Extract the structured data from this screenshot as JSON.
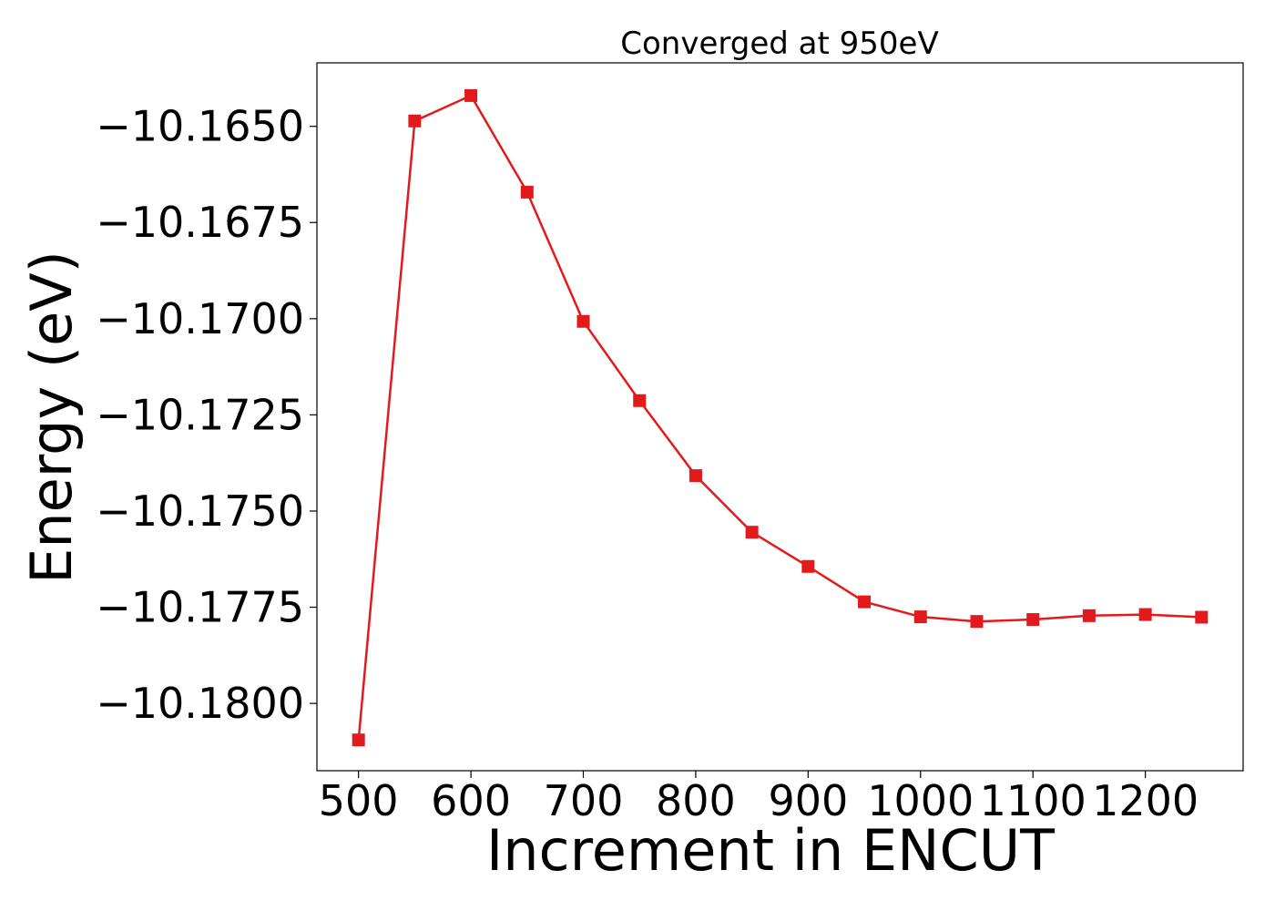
{
  "chart_data": {
    "type": "line",
    "title": "Converged at 950eV",
    "xlabel": "Increment in ENCUT",
    "ylabel": "Energy (eV)",
    "xlim": [
      463,
      1287
    ],
    "ylim": [
      -10.18175,
      -10.16335
    ],
    "x_ticks": [
      500,
      600,
      700,
      800,
      900,
      1000,
      1100,
      1200
    ],
    "x_tick_labels": [
      "500",
      "600",
      "700",
      "800",
      "900",
      "1000",
      "1100",
      "1200"
    ],
    "y_ticks": [
      -10.165,
      -10.1675,
      -10.17,
      -10.1725,
      -10.175,
      -10.1775,
      -10.18
    ],
    "y_tick_labels": [
      "−10.1650",
      "−10.1675",
      "−10.1700",
      "−10.1725",
      "−10.1750",
      "−10.1775",
      "−10.1800"
    ],
    "grid": false,
    "series": [
      {
        "color": "#e31a1c",
        "marker": "square",
        "x": [
          500,
          550,
          600,
          650,
          700,
          750,
          800,
          850,
          900,
          950,
          1000,
          1050,
          1100,
          1150,
          1200,
          1250
        ],
        "y": [
          -10.18095,
          -10.16486,
          -10.1642,
          -10.16671,
          -10.17007,
          -10.17213,
          -10.17408,
          -10.17555,
          -10.17644,
          -10.17736,
          -10.17775,
          -10.17787,
          -10.17782,
          -10.17772,
          -10.17769,
          -10.17776
        ]
      }
    ]
  }
}
